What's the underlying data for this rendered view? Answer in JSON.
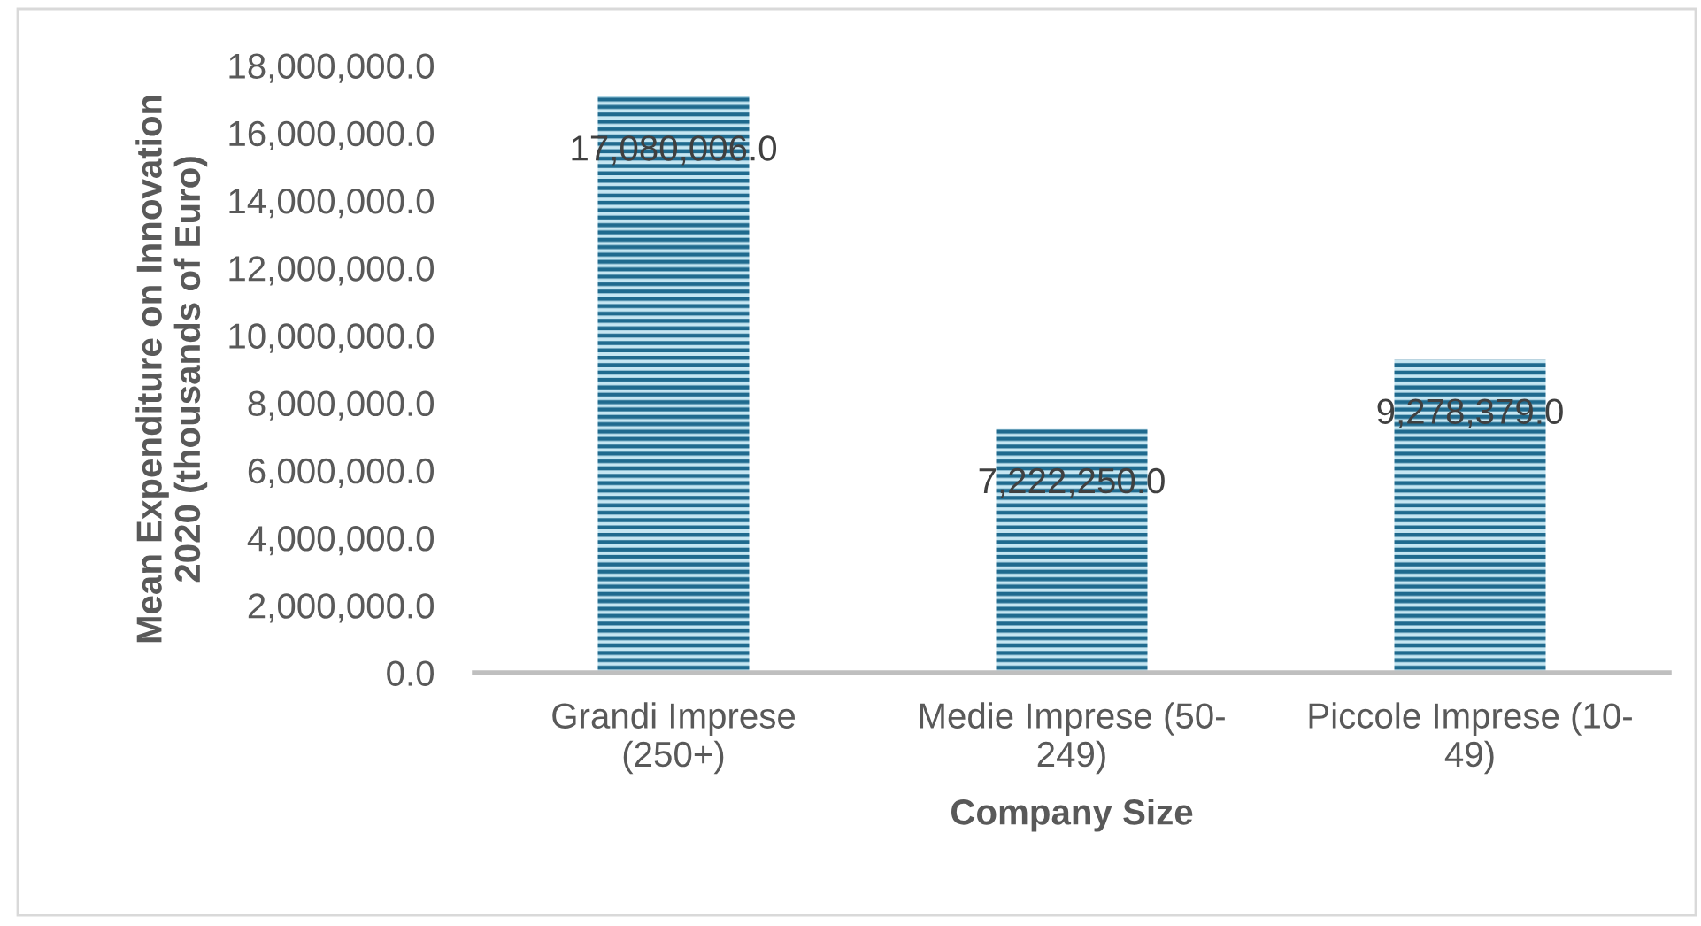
{
  "chart_data": {
    "type": "bar",
    "xlabel": "Company Size",
    "ylabel": "Mean Expenditure on Innovation\n2020 (thousands of Euro)",
    "categories": [
      "Grandi Imprese\n(250+)",
      "Medie Imprese (50-\n249)",
      "Piccole Imprese (10-\n49)"
    ],
    "values": [
      17080006.0,
      7222250.0,
      9278379.0
    ],
    "value_labels": [
      "17,080,006.0",
      "7,222,250.0",
      "9,278,379.0"
    ],
    "color": "#1f6a8e",
    "ylim": [
      0,
      18000000
    ],
    "yticks": [
      {
        "value": 0,
        "label": "0.0"
      },
      {
        "value": 2000000,
        "label": "2,000,000.0"
      },
      {
        "value": 4000000,
        "label": "4,000,000.0"
      },
      {
        "value": 6000000,
        "label": "6,000,000.0"
      },
      {
        "value": 8000000,
        "label": "8,000,000.0"
      },
      {
        "value": 10000000,
        "label": "10,000,000.0"
      },
      {
        "value": 12000000,
        "label": "12,000,000.0"
      },
      {
        "value": 14000000,
        "label": "14,000,000.0"
      },
      {
        "value": 16000000,
        "label": "16,000,000.0"
      },
      {
        "value": 18000000,
        "label": "18,000,000.0"
      }
    ],
    "grid": false
  }
}
